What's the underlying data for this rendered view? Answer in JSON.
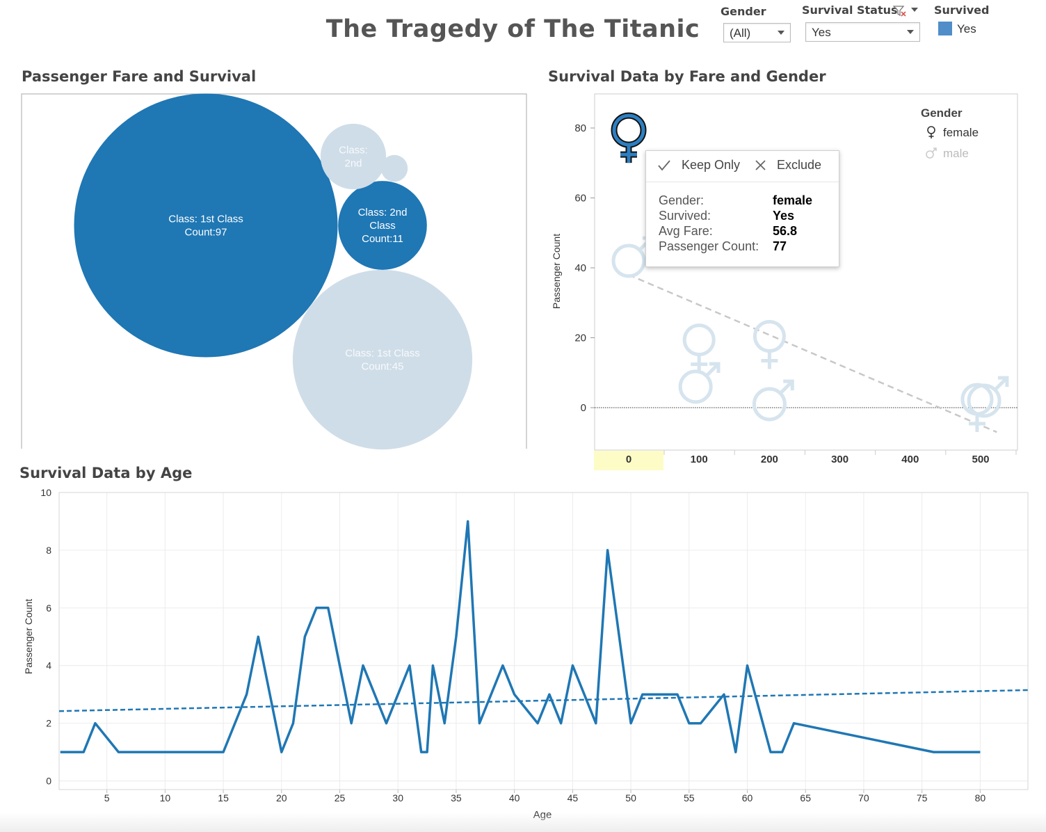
{
  "header": {
    "title": "The Tragedy of The Titanic"
  },
  "filters": {
    "gender": {
      "label": "Gender",
      "value": "(All)"
    },
    "survival_status": {
      "label": "Survival Status",
      "value": "Yes"
    },
    "survived_legend": {
      "label": "Survived",
      "item": "Yes",
      "color": "#4f8ec9"
    }
  },
  "panels": {
    "fare": {
      "title": "Passenger Fare and Survival"
    },
    "gender": {
      "title": "Survival Data by Fare and Gender"
    },
    "age": {
      "title": "Survival Data by Age"
    }
  },
  "tooltip": {
    "keep_only": "Keep Only",
    "exclude": "Exclude",
    "rows": [
      {
        "label": "Gender:",
        "value": "female"
      },
      {
        "label": "Survived:",
        "value": "Yes"
      },
      {
        "label": "Avg Fare:",
        "value": "56.8"
      },
      {
        "label": "Passenger Count:",
        "value": "77"
      }
    ]
  },
  "colors": {
    "dark_blue": "#1f77b4",
    "light_blue": "#cfdde8",
    "faded_icon": "#d6e4ee",
    "highlight": "#fdfcc6"
  },
  "chart_data": [
    {
      "type": "bubble",
      "title": "Passenger Fare and Survival",
      "bubbles": [
        {
          "line1": "Class: 1st Class",
          "line2": "Count:97",
          "count": 97,
          "survived": "Yes"
        },
        {
          "line1": "Class: 1st Class",
          "line2": "Count:45",
          "count": 45,
          "survived": "No"
        },
        {
          "line1": "Class: 2nd",
          "line2": "Class",
          "line3": "Count:11",
          "count": 11,
          "survived": "Yes"
        },
        {
          "line1": "Class:",
          "line2": "2nd",
          "count": 6,
          "survived": "No"
        },
        {
          "line1": "",
          "line2": "",
          "count": 1,
          "survived": "No"
        }
      ]
    },
    {
      "type": "scatter",
      "title": "Survival Data by Fare and Gender",
      "xlabel": "",
      "ylabel": "Passenger Count",
      "xlim": [
        -50,
        555
      ],
      "ylim": [
        -12,
        90
      ],
      "x_ticks": [
        "0",
        "100",
        "200",
        "300",
        "400",
        "500"
      ],
      "y_ticks": [
        "0",
        "20",
        "40",
        "60",
        "80"
      ],
      "highlight_tick": "0",
      "legend": {
        "title": "Gender",
        "items": [
          "female",
          "male"
        ]
      },
      "points": [
        {
          "gender": "female",
          "fare": 0,
          "count": 77,
          "selected": true
        },
        {
          "gender": "male",
          "fare": 0,
          "count": 42
        },
        {
          "gender": "female",
          "fare": 100,
          "count": 17
        },
        {
          "gender": "male",
          "fare": 95,
          "count": 6
        },
        {
          "gender": "female",
          "fare": 200,
          "count": 18
        },
        {
          "gender": "male",
          "fare": 200,
          "count": 1
        },
        {
          "gender": "female",
          "fare": 495,
          "count": 0
        },
        {
          "gender": "male",
          "fare": 505,
          "count": 2
        }
      ],
      "trend": {
        "x": [
          0,
          523
        ],
        "y": [
          38,
          -7
        ]
      }
    },
    {
      "type": "line",
      "title": "Survival Data by Age",
      "xlabel": "Age",
      "ylabel": "Passenger Count",
      "xlim": [
        0.9,
        84.1
      ],
      "ylim": [
        -0.3,
        10
      ],
      "x_ticks": [
        5,
        10,
        15,
        20,
        25,
        30,
        35,
        40,
        45,
        50,
        55,
        60,
        65,
        70,
        75,
        80
      ],
      "y_ticks": [
        0,
        2,
        4,
        6,
        8,
        10
      ],
      "series": [
        {
          "x": [
            1,
            2,
            3,
            4,
            6,
            15,
            17,
            18,
            20,
            21,
            22,
            23,
            24,
            26,
            27,
            29,
            31,
            32,
            32.5,
            33,
            34,
            35,
            36,
            37,
            39,
            40,
            42,
            43,
            44,
            45,
            47,
            48,
            50,
            51,
            52,
            54,
            55,
            56,
            58,
            59,
            60,
            62,
            63,
            64,
            76,
            80
          ],
          "y": [
            1,
            1,
            1,
            2,
            1,
            1,
            3,
            5,
            1,
            2,
            5,
            6,
            6,
            2,
            4,
            2,
            4,
            1,
            1,
            4,
            2,
            5,
            9,
            2,
            4,
            3,
            2,
            3,
            2,
            4,
            2,
            8,
            2,
            3,
            3,
            3,
            2,
            2,
            3,
            1,
            4,
            1,
            1,
            2,
            1,
            1
          ]
        }
      ],
      "trend": {
        "x": [
          0.9,
          84.1
        ],
        "y": [
          2.42,
          3.15
        ]
      }
    }
  ]
}
